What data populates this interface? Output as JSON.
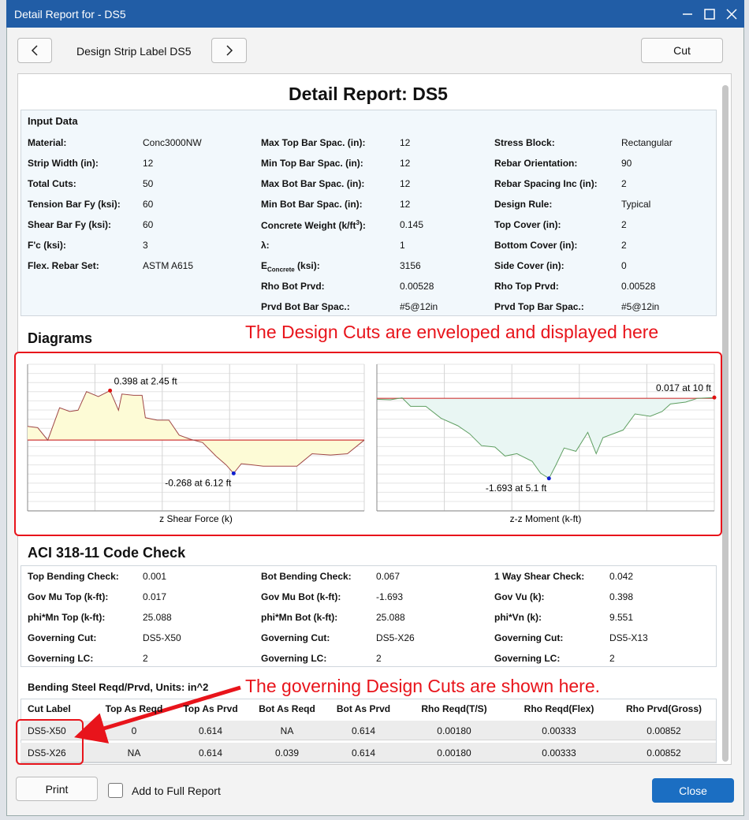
{
  "window": {
    "title": "Detail Report for - DS5"
  },
  "toolbar": {
    "strip_label": "Design Strip Label DS5",
    "cut_button": "Cut"
  },
  "report": {
    "title": "Detail Report: DS5"
  },
  "input_data": {
    "heading": "Input Data",
    "rows": [
      [
        "Material:",
        "Conc3000NW",
        "Max Top Bar Spac. (in):",
        "12",
        "Stress Block:",
        "Rectangular"
      ],
      [
        "Strip Width (in):",
        "12",
        "Min Top Bar Spac. (in):",
        "12",
        "Rebar Orientation:",
        "90"
      ],
      [
        "Total Cuts:",
        "50",
        "Max Bot Bar Spac. (in):",
        "12",
        "Rebar Spacing Inc (in):",
        "2"
      ],
      [
        "Tension Bar Fy (ksi):",
        "60",
        "Min Bot Bar Spac. (in):",
        "12",
        "Design Rule:",
        "Typical"
      ],
      [
        "Shear Bar Fy (ksi):",
        "60",
        {
          "text": "Concrete Weight (k/ft",
          "sup": "3",
          "tail": "):"
        },
        "0.145",
        "Top Cover (in):",
        "2"
      ],
      [
        "F'c (ksi):",
        "3",
        "λ:",
        "1",
        "Bottom Cover (in):",
        "2"
      ],
      [
        "Flex. Rebar Set:",
        "ASTM A615",
        {
          "text": "E",
          "sub": "Concrete",
          "tail": " (ksi):"
        },
        "3156",
        "Side Cover (in):",
        "0"
      ],
      [
        null,
        null,
        "Rho Bot Prvd:",
        "0.00528",
        "Rho Top Prvd:",
        "0.00528"
      ],
      [
        null,
        null,
        "Prvd Bot Bar Spac.:",
        "#5@12in",
        "Prvd Top Bar Spac.:",
        "#5@12in"
      ]
    ]
  },
  "diagrams": {
    "heading": "Diagrams",
    "callout": "The Design Cuts are enveloped and displayed here",
    "shear": {
      "xlabel": "z Shear Force (k)",
      "annotation_max": "0.398 at 2.45 ft",
      "annotation_min": "-0.268 at 6.12 ft",
      "xlim": [
        0,
        10
      ],
      "ylim": [
        -0.57,
        0.61
      ],
      "x": [
        0,
        0.3,
        0.6,
        0.95,
        1.25,
        1.5,
        1.75,
        2.1,
        2.45,
        2.7,
        2.8,
        3.15,
        3.4,
        3.5,
        3.85,
        4.2,
        4.5,
        4.8,
        5.2,
        5.6,
        5.9,
        6.12,
        6.35,
        6.7,
        7.0,
        7.5,
        8.0,
        8.45,
        9.0,
        9.5,
        10
      ],
      "values": [
        0.11,
        0.1,
        0,
        0.26,
        0.23,
        0.24,
        0.39,
        0.35,
        0.398,
        0.24,
        0.37,
        0.36,
        0.36,
        0.18,
        0.16,
        0.16,
        0.04,
        0.01,
        -0.02,
        -0.13,
        -0.2,
        -0.268,
        -0.19,
        -0.2,
        -0.21,
        -0.21,
        -0.21,
        -0.11,
        -0.12,
        -0.11,
        0
      ]
    },
    "moment": {
      "xlabel": "z-z Moment (k-ft)",
      "annotation_max": "0.017 at 10 ft",
      "annotation_min": "-1.693 at 5.1 ft",
      "xlim": [
        0,
        10
      ],
      "ylim": [
        -2.38,
        0.72
      ],
      "x": [
        0,
        0.4,
        0.75,
        1.0,
        1.45,
        1.9,
        2.4,
        2.75,
        3.1,
        3.5,
        3.8,
        4.15,
        4.6,
        4.85,
        5.1,
        5.3,
        5.55,
        5.9,
        6.25,
        6.5,
        6.7,
        7.3,
        7.65,
        8.1,
        8.45,
        8.7,
        9.15,
        9.5,
        10
      ],
      "values": [
        -0.02,
        -0.03,
        0.01,
        -0.17,
        -0.17,
        -0.42,
        -0.58,
        -0.75,
        -1.0,
        -1.03,
        -1.22,
        -1.17,
        -1.33,
        -1.58,
        -1.693,
        -1.42,
        -1.05,
        -1.12,
        -0.72,
        -1.17,
        -0.83,
        -0.67,
        -0.33,
        -0.38,
        -0.28,
        -0.12,
        -0.08,
        0.0,
        0.017
      ]
    }
  },
  "code_check": {
    "heading": "ACI 318-11 Code Check",
    "rows": [
      [
        "Top Bending Check:",
        "0.001",
        "Bot Bending Check:",
        "0.067",
        "1 Way Shear Check:",
        "0.042"
      ],
      [
        "Gov Mu Top (k-ft):",
        "0.017",
        "Gov Mu Bot (k-ft):",
        "-1.693",
        "Gov Vu (k):",
        "0.398"
      ],
      [
        "phi*Mn Top (k-ft):",
        "25.088",
        "phi*Mn Bot (k-ft):",
        "25.088",
        "phi*Vn (k):",
        "9.551"
      ],
      [
        "Governing Cut:",
        "DS5-X50",
        "Governing Cut:",
        "DS5-X26",
        "Governing Cut:",
        "DS5-X13"
      ],
      [
        "Governing LC:",
        "2",
        "Governing LC:",
        "2",
        "Governing LC:",
        "2"
      ]
    ]
  },
  "bending": {
    "heading": "Bending Steel Reqd/Prvd, Units: in^2",
    "callout": "The governing Design Cuts are shown here.",
    "columns": [
      "Cut Label",
      "Top As Reqd",
      "Top As Prvd",
      "Bot As Reqd",
      "Bot As Prvd",
      "Rho Reqd(T/S)",
      "Rho Reqd(Flex)",
      "Rho Prvd(Gross)"
    ],
    "rows": [
      [
        "DS5-X50",
        "0",
        "0.614",
        "NA",
        "0.614",
        "0.00180",
        "0.00333",
        "0.00852"
      ],
      [
        "DS5-X26",
        "NA",
        "0.614",
        "0.039",
        "0.614",
        "0.00180",
        "0.00333",
        "0.00852"
      ]
    ]
  },
  "footer": {
    "print": "Print",
    "add_to_full_report": "Add to Full Report",
    "close": "Close"
  }
}
